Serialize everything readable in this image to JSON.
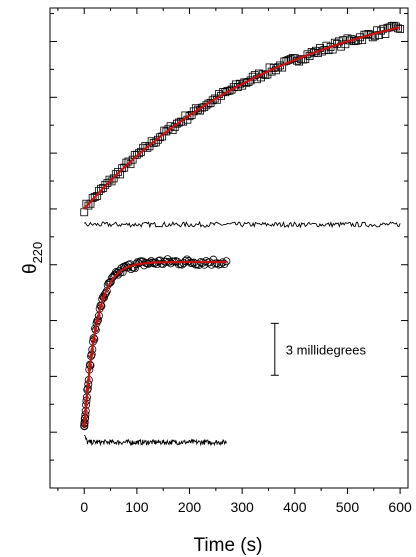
{
  "chart_data": {
    "type": "scatter",
    "title": "",
    "xlabel": "Time (s)",
    "ylabel_main": "θ",
    "ylabel_sub": "220",
    "x_ticks": [
      "0",
      "100",
      "200",
      "300",
      "400",
      "500",
      "600"
    ],
    "xlim": [
      -65,
      615
    ],
    "ylim": [
      0,
      8.6
    ],
    "y_numeric_tick_labels": false,
    "grid": false,
    "scale_bar": {
      "label": "3 millidegrees",
      "length": 3
    },
    "colors": {
      "data": "#000000",
      "fit": "#cc1111",
      "fit_marker_tint": "#cc2222",
      "axis": "#000000"
    },
    "series": [
      {
        "marker": "square",
        "x_range": [
          0,
          600
        ],
        "fit": {
          "model": "single-exponential",
          "y0": 5.0,
          "amplitude": 4.1,
          "tau_s": 380
        },
        "residual_baseline": 4.72
      },
      {
        "marker": "circle",
        "x_range": [
          0,
          270
        ],
        "fit": {
          "model": "single-exponential",
          "y0": 1.1,
          "amplitude": 2.95,
          "tau_s": 24
        },
        "residual_baseline": 0.82
      }
    ]
  }
}
